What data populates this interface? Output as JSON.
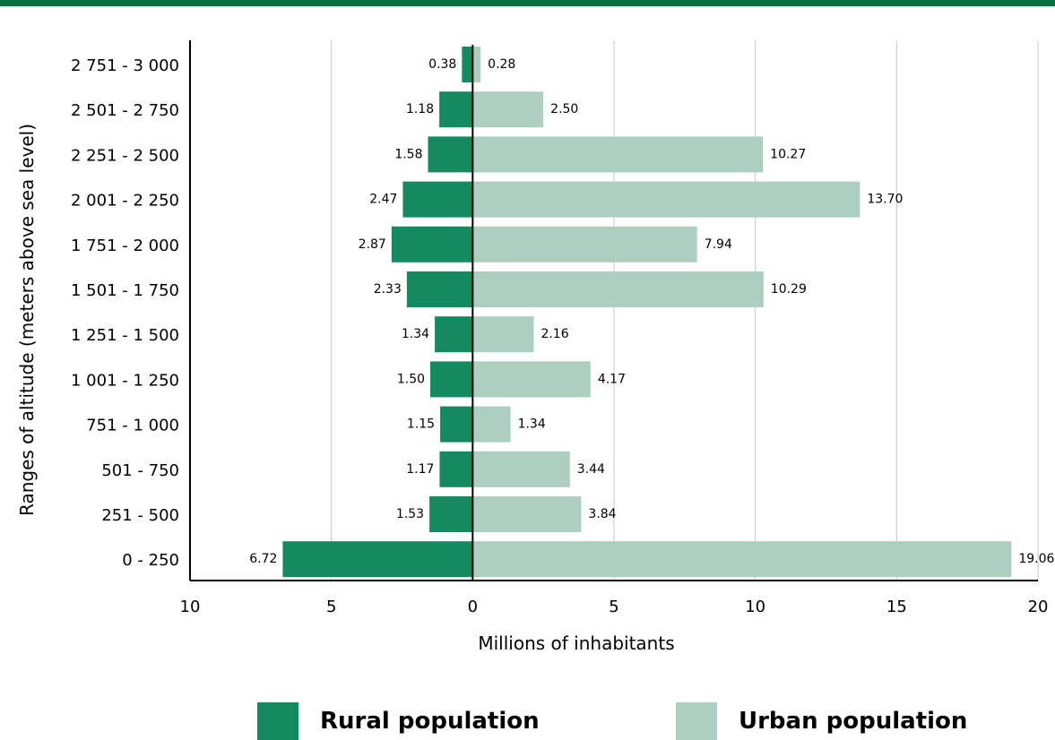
{
  "colors": {
    "band": "#0a7040",
    "rural": "#138a60",
    "urban": "#accfc0",
    "grid": "#c8c8c8",
    "axis": "#000000"
  },
  "chart_data": {
    "type": "bar",
    "orientation": "horizontal",
    "xlabel": "Millions of inhabitants",
    "ylabel": "Ranges of altitude (meters above sea level)",
    "xlim": [
      -10,
      20
    ],
    "x_ticks": [
      {
        "value": -10,
        "label": "10"
      },
      {
        "value": -5,
        "label": "5"
      },
      {
        "value": 0,
        "label": "0"
      },
      {
        "value": 5,
        "label": "5"
      },
      {
        "value": 10,
        "label": "10"
      },
      {
        "value": 15,
        "label": "15"
      },
      {
        "value": 20,
        "label": "20"
      }
    ],
    "grid": "vertical",
    "legend_position": "bottom",
    "categories": [
      "2 751 - 3 000",
      "2 501 - 2 750",
      "2 251 - 2 500",
      "2 001 - 2 250",
      "1 751 - 2 000",
      "1 501 - 1 750",
      "1 251 - 1 500",
      "1 001 - 1 250",
      "751 - 1 000",
      "501 - 750",
      "251 - 500",
      "0 - 250"
    ],
    "series": [
      {
        "name": "Rural population",
        "color": "#138a60",
        "direction": "left",
        "values": [
          0.38,
          1.18,
          1.58,
          2.47,
          2.87,
          2.33,
          1.34,
          1.5,
          1.15,
          1.17,
          1.53,
          6.72
        ],
        "labels": [
          "0.38",
          "1.18",
          "1.58",
          "2.47",
          "2.87",
          "2.33",
          "1.34",
          "1.50",
          "1.15",
          "1.17",
          "1.53",
          "6.72"
        ]
      },
      {
        "name": "Urban population",
        "color": "#accfc0",
        "direction": "right",
        "values": [
          0.28,
          2.5,
          10.27,
          13.7,
          7.94,
          10.29,
          2.16,
          4.17,
          1.34,
          3.44,
          3.84,
          19.06
        ],
        "labels": [
          "0.28",
          "2.50",
          "10.27",
          "13.70",
          "7.94",
          "10.29",
          "2.16",
          "4.17",
          "1.34",
          "3.44",
          "3.84",
          "19.06"
        ]
      }
    ]
  }
}
